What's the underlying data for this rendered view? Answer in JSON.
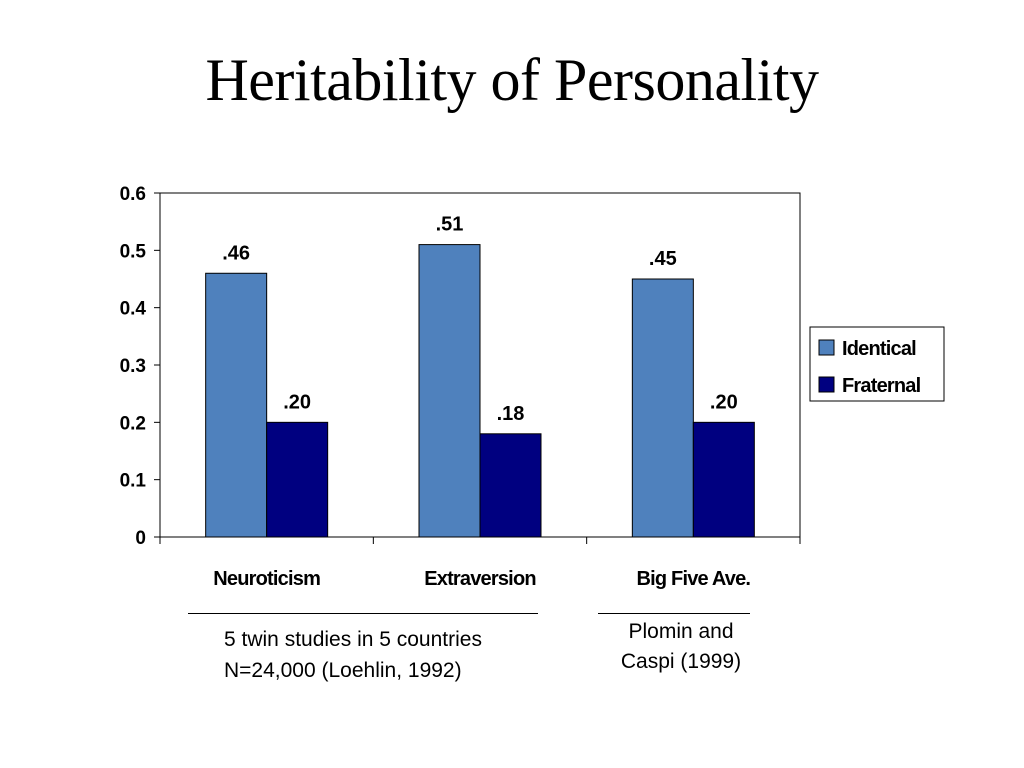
{
  "slide": {
    "title": "Heritability of Personality"
  },
  "chart_data": {
    "type": "bar",
    "title": "",
    "xlabel": "",
    "ylabel": "",
    "ylim": [
      0,
      0.6
    ],
    "yticks": [
      0,
      0.1,
      0.2,
      0.3,
      0.4,
      0.5,
      0.6
    ],
    "ytick_labels": [
      "0",
      "0.1",
      "0.2",
      "0.3",
      "0.4",
      "0.5",
      "0.6"
    ],
    "grid": false,
    "legend_position": "right",
    "categories": [
      "Neuroticism",
      "Extraversion",
      "Big Five Ave."
    ],
    "series": [
      {
        "name": "Identical",
        "color": "#4f81bd",
        "values": [
          0.46,
          0.51,
          0.45
        ],
        "data_labels": [
          ".46",
          ".51",
          ".45"
        ]
      },
      {
        "name": "Fraternal",
        "color": "#000080",
        "values": [
          0.2,
          0.18,
          0.2
        ],
        "data_labels": [
          ".20",
          ".18",
          ".20"
        ]
      }
    ]
  },
  "notes": {
    "left_line1": "5 twin studies in 5 countries",
    "left_line2": "N=24,000 (Loehlin, 1992)",
    "right_line1": "Plomin and",
    "right_line2": "Caspi (1999)"
  }
}
